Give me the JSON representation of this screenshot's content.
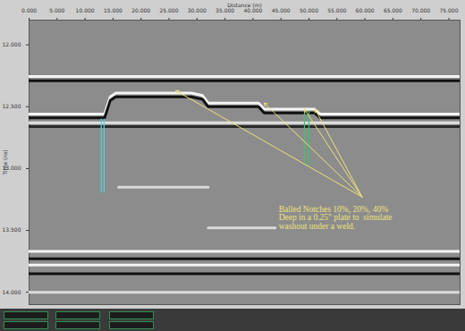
{
  "chart_data": {
    "type": "radargram",
    "x_label": "Distance (m)",
    "y_label": "Time (ns)",
    "xlim": [
      0,
      77
    ],
    "xticks": [
      {
        "value": 0,
        "label": "0.000"
      },
      {
        "value": 5,
        "label": "5.000"
      },
      {
        "value": 10,
        "label": "10.000"
      },
      {
        "value": 15,
        "label": "15.000"
      },
      {
        "value": 20,
        "label": "20.000"
      },
      {
        "value": 25,
        "label": "25.000"
      },
      {
        "value": 30,
        "label": "30.000"
      },
      {
        "value": 35,
        "label": "35.000"
      },
      {
        "value": 40,
        "label": "40.000"
      },
      {
        "value": 45,
        "label": "45.000"
      },
      {
        "value": 50,
        "label": "50.000"
      },
      {
        "value": 55,
        "label": "55.000"
      },
      {
        "value": 60,
        "label": "60.000"
      },
      {
        "value": 65,
        "label": "65.000"
      },
      {
        "value": 70,
        "label": "70.000"
      },
      {
        "value": 75,
        "label": "75.000"
      }
    ],
    "ylim": [
      11.8,
      14.1
    ],
    "yticks": [
      {
        "value": 12,
        "label": "12.000"
      },
      {
        "value": 12.5,
        "label": "12.500"
      },
      {
        "value": 13,
        "label": "13.000"
      },
      {
        "value": 13.5,
        "label": "13.500"
      },
      {
        "value": 14,
        "label": "14.000"
      }
    ],
    "reflectors": [
      {
        "color": "#f4f4f4",
        "x": [
          0,
          77
        ],
        "y": [
          12.255,
          12.255
        ]
      },
      {
        "color": "#111111",
        "x": [
          0,
          77
        ],
        "y": [
          12.29,
          12.29
        ]
      },
      {
        "color": "#f4f4f4",
        "x": [
          0,
          13.5,
          14.5,
          15.5,
          29,
          31,
          32,
          41,
          42,
          51,
          52,
          77
        ],
        "y": [
          12.56,
          12.56,
          12.42,
          12.39,
          12.39,
          12.41,
          12.47,
          12.47,
          12.52,
          12.52,
          12.56,
          12.56
        ]
      },
      {
        "color": "#111111",
        "x": [
          0,
          13.5,
          14.5,
          15.5,
          29,
          31,
          32,
          41,
          42,
          51,
          52,
          77
        ],
        "y": [
          12.59,
          12.59,
          12.45,
          12.42,
          12.42,
          12.44,
          12.5,
          12.5,
          12.55,
          12.55,
          12.59,
          12.59
        ]
      },
      {
        "color": "#e0e0e0",
        "x": [
          0,
          77
        ],
        "y": [
          12.63,
          12.63
        ]
      },
      {
        "color": "#2a2a2a",
        "x": [
          0,
          77
        ],
        "y": [
          12.66,
          12.66
        ]
      },
      {
        "color": "#d8d8d8",
        "x": [
          16,
          32
        ],
        "y": [
          13.15,
          13.15
        ]
      },
      {
        "color": "#d8d8d8",
        "x": [
          32,
          44
        ],
        "y": [
          13.48,
          13.48
        ]
      },
      {
        "color": "#f4f4f4",
        "x": [
          0,
          77
        ],
        "y": [
          13.67,
          13.67
        ]
      },
      {
        "color": "#111111",
        "x": [
          0,
          77
        ],
        "y": [
          13.73,
          13.73
        ]
      },
      {
        "color": "#f4f4f4",
        "x": [
          0,
          77
        ],
        "y": [
          13.78,
          13.78
        ]
      },
      {
        "color": "#111111",
        "x": [
          0,
          77
        ],
        "y": [
          13.85,
          13.85
        ]
      },
      {
        "color": "#dcdcdc",
        "x": [
          0,
          77
        ],
        "y": [
          14.0,
          14.0
        ]
      }
    ],
    "markers": [
      {
        "color": "#4fd6e0",
        "x": [
          12.9,
          12.9
        ],
        "y": [
          12.6,
          13.19
        ]
      },
      {
        "color": "#4fd6e0",
        "x": [
          13.4,
          13.4
        ],
        "y": [
          12.6,
          13.19
        ]
      },
      {
        "color": "#3cc46a",
        "x": [
          49.2,
          49.2
        ],
        "y": [
          12.54,
          12.97
        ]
      },
      {
        "color": "#3cc46a",
        "x": [
          50.0,
          50.0
        ],
        "y": [
          12.54,
          12.97
        ]
      }
    ],
    "annotation": {
      "lines": [
        "Balled Notches 10%, 20%, 40%",
        "Deep in a 0.25\" plate to  simulate",
        "washout under a weld."
      ],
      "color": "#ece27a",
      "x": 44.6,
      "y": 13.3,
      "arrow_from": [
        59.5,
        13.23
      ],
      "targets": [
        [
          26.2,
          12.37
        ],
        [
          42,
          12.47
        ],
        [
          49.2,
          12.52
        ],
        [
          51.1,
          12.52
        ]
      ]
    }
  }
}
